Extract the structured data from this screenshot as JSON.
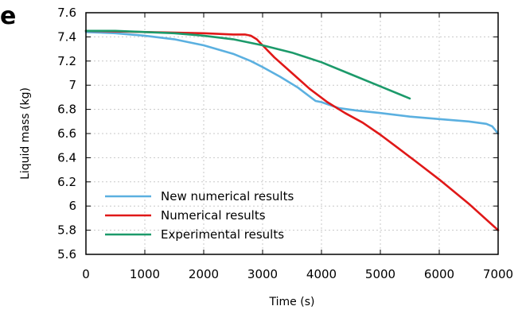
{
  "panel_label": "e",
  "chart_data": {
    "type": "line",
    "xlabel": "Time (s)",
    "ylabel": "Liquid mass (kg)",
    "xlim": [
      0,
      7000
    ],
    "ylim": [
      5.6,
      7.6
    ],
    "xticks": [
      "0",
      "1000",
      "2000",
      "3000",
      "4000",
      "5000",
      "6000",
      "7000"
    ],
    "yticks": [
      "5.6",
      "5.8",
      "6",
      "6.2",
      "6.4",
      "6.6",
      "6.8",
      "7",
      "7.2",
      "7.4",
      "7.6"
    ],
    "grid": true,
    "legend_position": "bottom-left",
    "series": [
      {
        "name": "New numerical results",
        "color": "#5bb0e0",
        "x": [
          0,
          500,
          1000,
          1500,
          2000,
          2500,
          2800,
          3000,
          3300,
          3600,
          3900,
          4000,
          4300,
          4600,
          5000,
          5500,
          6000,
          6500,
          6800,
          6900,
          7000
        ],
        "y": [
          7.44,
          7.43,
          7.41,
          7.38,
          7.33,
          7.26,
          7.2,
          7.15,
          7.07,
          6.98,
          6.87,
          6.86,
          6.81,
          6.79,
          6.77,
          6.74,
          6.72,
          6.7,
          6.68,
          6.66,
          6.6
        ]
      },
      {
        "name": "Numerical results",
        "color": "#e01818",
        "x": [
          0,
          1000,
          2000,
          2500,
          2700,
          2800,
          2900,
          3000,
          3200,
          3500,
          3800,
          4100,
          4400,
          4700,
          5000,
          5300,
          5600,
          6000,
          6500,
          7000
        ],
        "y": [
          7.45,
          7.44,
          7.43,
          7.42,
          7.42,
          7.41,
          7.38,
          7.33,
          7.23,
          7.1,
          6.97,
          6.86,
          6.77,
          6.69,
          6.59,
          6.48,
          6.37,
          6.22,
          6.02,
          5.8
        ]
      },
      {
        "name": "Experimental results",
        "color": "#1c9a6a",
        "x": [
          0,
          500,
          1000,
          1500,
          2000,
          2500,
          3000,
          3500,
          4000,
          4500,
          5000,
          5500
        ],
        "y": [
          7.45,
          7.45,
          7.44,
          7.43,
          7.41,
          7.38,
          7.33,
          7.27,
          7.19,
          7.09,
          6.99,
          6.89
        ]
      }
    ]
  }
}
